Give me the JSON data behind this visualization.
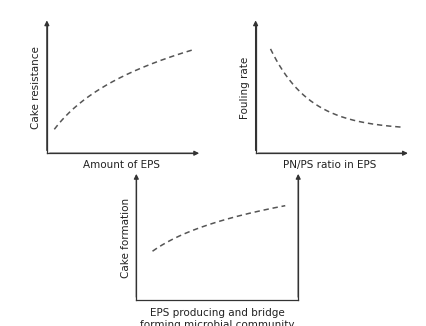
{
  "background_color": "#ffffff",
  "text_color": "#222222",
  "curve_color": "#555555",
  "subplot1": {
    "xlabel": "Amount of EPS",
    "ylabel": "Cake resistance"
  },
  "subplot2": {
    "xlabel": "PN/PS ratio in EPS",
    "ylabel": "Fouling rate"
  },
  "subplot3": {
    "xlabel": "EPS producing and bridge\nforming microbial community",
    "ylabel": "Cake formation"
  },
  "label_fontsize": 7.5,
  "arrow_color": "#333333",
  "line_color": "#333333"
}
